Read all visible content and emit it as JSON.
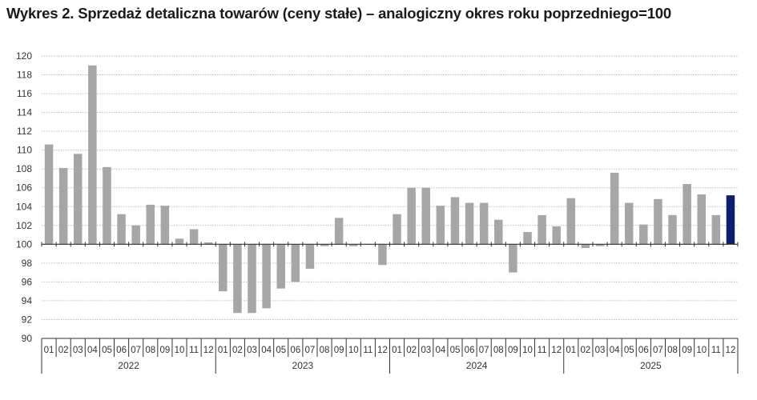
{
  "title": "Wykres 2. Sprzedaż detaliczna towarów (ceny stałe) – analogiczny okres roku poprzedniego=100",
  "colors": {
    "bar": "#a6a6a6",
    "highlight": "#0b1f6e",
    "grid": "#bdbdbd",
    "axis": "#333333"
  },
  "chart_data": {
    "type": "bar",
    "title": "Wykres 2. Sprzedaż detaliczna towarów (ceny stałe) – analogiczny okres roku poprzedniego=100",
    "baseline": 100,
    "ylim": [
      90,
      120
    ],
    "yticks": [
      90,
      92,
      94,
      96,
      98,
      100,
      102,
      104,
      106,
      108,
      110,
      112,
      114,
      116,
      118,
      120
    ],
    "grid": true,
    "years": [
      "2022",
      "2023",
      "2024",
      "2025"
    ],
    "months": [
      "01",
      "02",
      "03",
      "04",
      "05",
      "06",
      "07",
      "08",
      "09",
      "10",
      "11",
      "12"
    ],
    "values": [
      110.6,
      108.1,
      109.6,
      119.0,
      108.2,
      103.2,
      102.0,
      104.2,
      104.1,
      100.6,
      101.6,
      100.2,
      95.0,
      92.7,
      92.7,
      93.2,
      95.3,
      96.0,
      97.4,
      99.8,
      102.8,
      99.8,
      100.0,
      97.8,
      103.2,
      106.0,
      106.0,
      104.1,
      105.0,
      104.4,
      104.4,
      102.6,
      97.0,
      101.3,
      103.1,
      101.9,
      104.9,
      99.6,
      99.8,
      107.6,
      104.4,
      102.1,
      104.8,
      103.1,
      106.4,
      105.3,
      103.1,
      105.2
    ],
    "highlight_index": 47
  }
}
